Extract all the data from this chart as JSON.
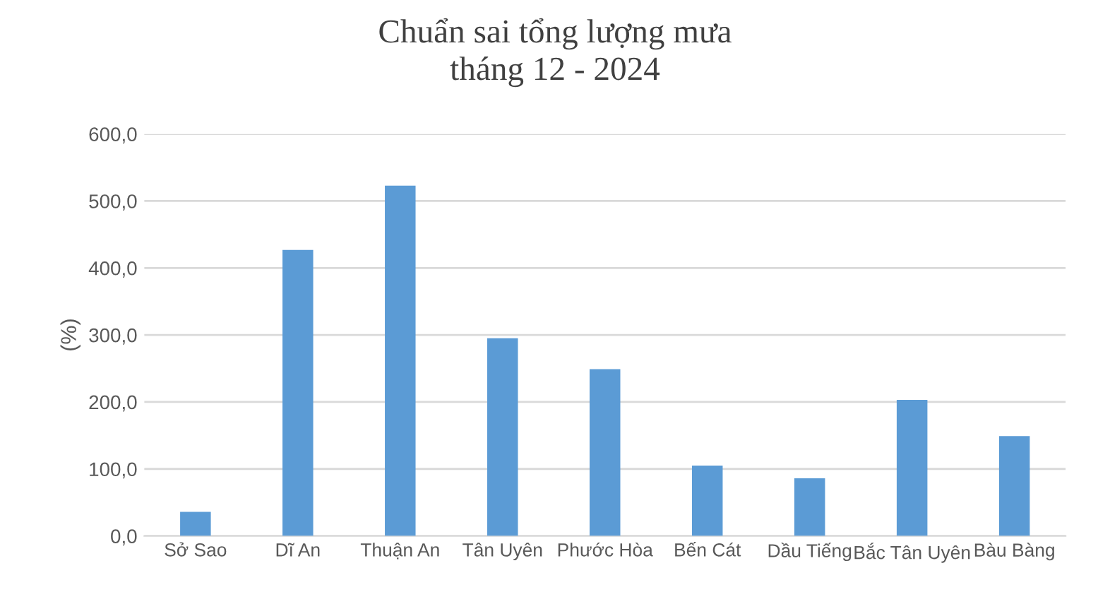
{
  "chart_data": {
    "type": "bar",
    "title": "Chuẩn sai tổng lượng mưa\ntháng 12 - 2024",
    "ylabel": "(%)",
    "categories": [
      "Sở Sao",
      "Dĩ An",
      "Thuận An",
      "Tân Uyên",
      "Phước Hòa",
      "Bến Cát",
      "Dầu Tiếng",
      "Bắc Tân Uyên",
      "Bàu Bàng"
    ],
    "values": [
      36,
      427,
      523,
      295,
      249,
      105,
      86,
      203,
      149
    ],
    "color": "#5b9bd5",
    "ylim": [
      0,
      600
    ],
    "yticks": [
      {
        "value": 0,
        "label": "0,0"
      },
      {
        "value": 100,
        "label": "100,0"
      },
      {
        "value": 200,
        "label": "200,0"
      },
      {
        "value": 300,
        "label": "300,0"
      },
      {
        "value": 400,
        "label": "400,0"
      },
      {
        "value": 500,
        "label": "500,0"
      },
      {
        "value": 600,
        "label": "600,0"
      }
    ],
    "grid": "y"
  }
}
